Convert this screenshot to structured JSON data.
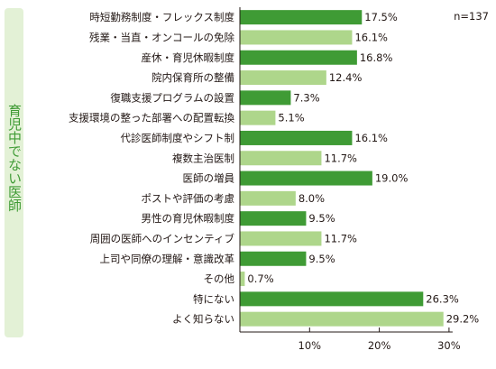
{
  "side_label": "育児中でない医師",
  "chart_data": {
    "type": "bar",
    "orientation": "horizontal",
    "note": "n=137",
    "categories": [
      "時短勤務制度・フレックス制度",
      "残業・当直・オンコールの免除",
      "産休・育児休暇制度",
      "院内保育所の整備",
      "復職支援プログラムの設置",
      "支援環境の整った部署への配置転換",
      "代診医師制度やシフト制",
      "複数主治医制",
      "医師の増員",
      "ポストや評価の考慮",
      "男性の育児休暇制度",
      "周囲の医師へのインセンティブ",
      "上司や同僚の理解・意識改革",
      "その他",
      "特にない",
      "よく知らない"
    ],
    "values": [
      17.5,
      16.1,
      16.8,
      12.4,
      7.3,
      5.1,
      16.1,
      11.7,
      19.0,
      8.0,
      9.5,
      11.7,
      9.5,
      0.7,
      26.3,
      29.2
    ],
    "value_labels": [
      "17.5%",
      "16.1%",
      "16.8%",
      "12.4%",
      "7.3%",
      "5.1%",
      "16.1%",
      "11.7%",
      "19.0%",
      "8.0%",
      "9.5%",
      "11.7%",
      "9.5%",
      "0.7%",
      "26.3%",
      "29.2%"
    ],
    "shades": [
      "dark",
      "light",
      "dark",
      "light",
      "dark",
      "light",
      "dark",
      "light",
      "dark",
      "light",
      "dark",
      "light",
      "dark",
      "light",
      "dark",
      "light"
    ],
    "xlim": [
      0,
      30
    ],
    "xticks": [
      10,
      20,
      30
    ],
    "xtick_labels": [
      "10%",
      "20%",
      "30%"
    ],
    "colors": {
      "dark": "#3f9b35",
      "light": "#aed68b",
      "axis": "#231815",
      "side_bg": "#e3f1d6",
      "side_text": "#3f9b35"
    }
  }
}
